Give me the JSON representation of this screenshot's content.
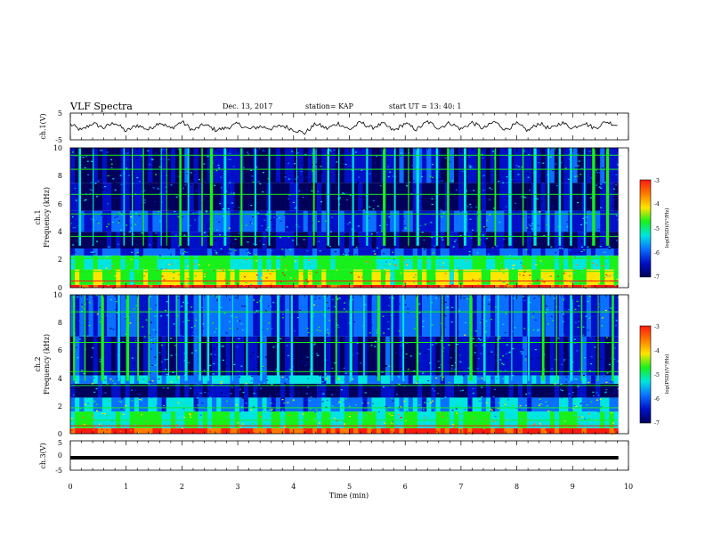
{
  "header": {
    "title": "VLF Spectra",
    "date": "Dec. 13, 2017",
    "station": "station= KAP",
    "start_ut": "start  UT =  13: 40: 1"
  },
  "colorbar": {
    "label": "log(PSD)(V²/Hz)",
    "ticks": [
      "-3",
      "-4",
      "-5",
      "-6",
      "-7"
    ],
    "colors": [
      "#ff1a10",
      "#ff7a00",
      "#ffe500",
      "#18f01c",
      "#00e5e0",
      "#0a70ff",
      "#0010c8",
      "#00005a"
    ]
  },
  "chart_data": [
    {
      "type": "line",
      "name": "ch1-waveform",
      "ylabel": "ch.1(V)",
      "ylim": [
        -5,
        5
      ],
      "yticks": [
        "5",
        "-5"
      ],
      "xlim": [
        0,
        10
      ],
      "grid": false,
      "x": [
        0.0,
        0.2,
        0.4,
        0.6,
        0.8,
        1.0,
        1.2,
        1.4,
        1.6,
        1.8,
        2.0,
        2.2,
        2.4,
        2.6,
        2.8,
        3.0,
        3.2,
        3.4,
        3.6,
        3.8,
        4.0,
        4.2,
        4.4,
        4.6,
        4.8,
        5.0,
        5.2,
        5.4,
        5.6,
        5.8,
        6.0,
        6.2,
        6.4,
        6.6,
        6.8,
        7.0,
        7.2,
        7.4,
        7.6,
        7.8,
        8.0,
        8.2,
        8.4,
        8.6,
        8.8,
        9.0,
        9.2,
        9.4,
        9.6,
        9.8
      ],
      "y": [
        0.8,
        -1.5,
        1.2,
        -0.5,
        1.5,
        -1.8,
        0.5,
        -1.2,
        1.6,
        -0.8,
        1.8,
        -1.5,
        0.8,
        -1.3,
        -0.6,
        1.0,
        -1.0,
        0.0,
        -0.8,
        0.3,
        -1.2,
        -2.5,
        1.0,
        -0.8,
        1.2,
        -1.2,
        1.5,
        -0.5,
        1.0,
        -1.6,
        1.2,
        -1.2,
        1.8,
        -0.6,
        1.4,
        -1.0,
        1.5,
        -0.8,
        1.8,
        -1.2,
        1.0,
        -1.6,
        1.3,
        -1.0,
        1.5,
        -0.6,
        1.4,
        -0.7,
        1.8,
        0.4
      ]
    },
    {
      "type": "heatmap",
      "name": "ch1-spectrogram",
      "ylabel": "ch.1",
      "ylabel2": "Frequency  (kHz)",
      "ylim": [
        0,
        10
      ],
      "yticks": [
        "10",
        "8",
        "6",
        "4",
        "2",
        "0"
      ],
      "xlim": [
        0,
        10
      ],
      "z_range": [
        -7,
        -3
      ],
      "bands": [
        {
          "f": [
            0.0,
            0.2
          ],
          "logpsd": -3.2
        },
        {
          "f": [
            0.2,
            1.3
          ],
          "logpsd": -4.6
        },
        {
          "f": [
            1.3,
            2.3
          ],
          "logpsd": -5.0
        },
        {
          "f": [
            2.3,
            2.8
          ],
          "logpsd": -6.0
        },
        {
          "f": [
            2.8,
            4.0
          ],
          "logpsd": -6.6
        },
        {
          "f": [
            4.0,
            5.5
          ],
          "logpsd": -6.0
        },
        {
          "f": [
            5.5,
            7.5
          ],
          "logpsd": -6.7
        },
        {
          "f": [
            7.5,
            10.0
          ],
          "logpsd": -6.4
        }
      ],
      "spectral_lines_khz": [
        0.5,
        1.2,
        2.1,
        2.2,
        3.7,
        5.3,
        6.7,
        8.5,
        9.5
      ],
      "bursts_min": [
        0.15,
        0.4,
        0.95,
        1.1,
        1.3,
        1.62,
        1.72,
        1.95,
        2.1,
        2.35,
        2.5,
        2.75,
        3.05,
        3.3,
        3.55,
        4.05,
        4.35,
        4.6,
        4.8,
        5.05,
        5.3,
        5.6,
        5.8,
        6.05,
        6.2,
        6.55,
        6.75,
        7.05,
        7.3,
        7.6,
        7.85,
        8.1,
        8.3,
        8.55,
        8.75,
        8.95,
        9.2,
        9.35,
        9.6
      ],
      "burst_top_khz": 10,
      "burst_bottom_khz": 3.0
    },
    {
      "type": "heatmap",
      "name": "ch2-spectrogram",
      "ylabel": "ch.2",
      "ylabel2": "Frequency  (kHz)",
      "ylim": [
        0,
        10
      ],
      "yticks": [
        "10",
        "8",
        "6",
        "4",
        "2",
        "0"
      ],
      "xlim": [
        0,
        10
      ],
      "z_range": [
        -7,
        -3
      ],
      "bands": [
        {
          "f": [
            0.0,
            0.4
          ],
          "logpsd": -3.4
        },
        {
          "f": [
            0.4,
            1.6
          ],
          "logpsd": -5.0
        },
        {
          "f": [
            1.6,
            2.6
          ],
          "logpsd": -5.6
        },
        {
          "f": [
            2.6,
            3.6
          ],
          "logpsd": -6.6
        },
        {
          "f": [
            3.6,
            4.2
          ],
          "logpsd": -5.6
        },
        {
          "f": [
            4.2,
            7.0
          ],
          "logpsd": -6.4
        },
        {
          "f": [
            7.0,
            10.0
          ],
          "logpsd": -6.0
        }
      ],
      "spectral_lines_khz": [
        0.6,
        1.0,
        1.9,
        3.5,
        4.5,
        6.6,
        8.8
      ],
      "bursts_min": [
        0.05,
        0.25,
        0.55,
        0.85,
        1.0,
        1.2,
        1.4,
        1.55,
        1.75,
        1.9,
        2.05,
        2.3,
        2.45,
        2.65,
        2.9,
        3.15,
        3.4,
        3.7,
        3.95,
        4.3,
        4.55,
        4.75,
        5.0,
        5.25,
        5.5,
        5.75,
        5.95,
        6.2,
        6.45,
        6.65,
        6.9,
        7.15,
        7.4,
        7.65,
        7.9,
        8.2,
        8.45,
        8.7,
        8.95,
        9.15,
        9.45,
        9.7
      ],
      "burst_top_khz": 10,
      "burst_bottom_khz": 3.8
    },
    {
      "type": "line",
      "name": "ch3-waveform",
      "ylabel": "ch.3(V)",
      "ylim": [
        -5,
        5
      ],
      "yticks": [
        "5",
        "0",
        "-5"
      ],
      "xlim": [
        0,
        10
      ],
      "xlabel": "Time  (min)",
      "xticks": [
        "0",
        "1",
        "2",
        "3",
        "4",
        "5",
        "6",
        "7",
        "8",
        "9",
        "10"
      ],
      "x": [
        0,
        9.82
      ],
      "y": [
        -1,
        -1
      ]
    }
  ]
}
